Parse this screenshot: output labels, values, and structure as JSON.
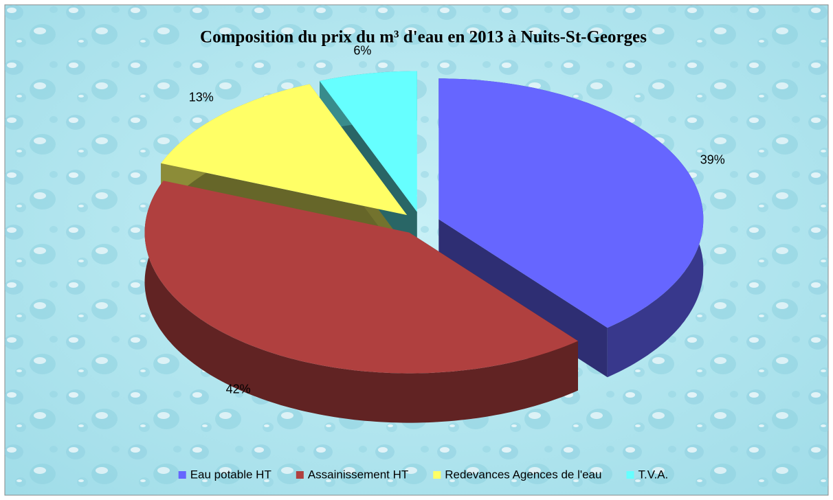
{
  "chart_data": {
    "type": "pie3d",
    "title": "Composition du prix du m³ d'eau en 2013 à Nuits-St-Georges",
    "categories": [
      "Eau potable HT",
      "Assainissement HT",
      "Redevances Agences de l'eau",
      "T.V.A."
    ],
    "values": [
      39,
      42,
      13,
      6
    ],
    "value_labels": [
      "39%",
      "42%",
      "13%",
      "6%"
    ],
    "colors": [
      "#6666ff",
      "#b0403f",
      "#ffff66",
      "#66ffff"
    ],
    "legend": "bottom"
  }
}
